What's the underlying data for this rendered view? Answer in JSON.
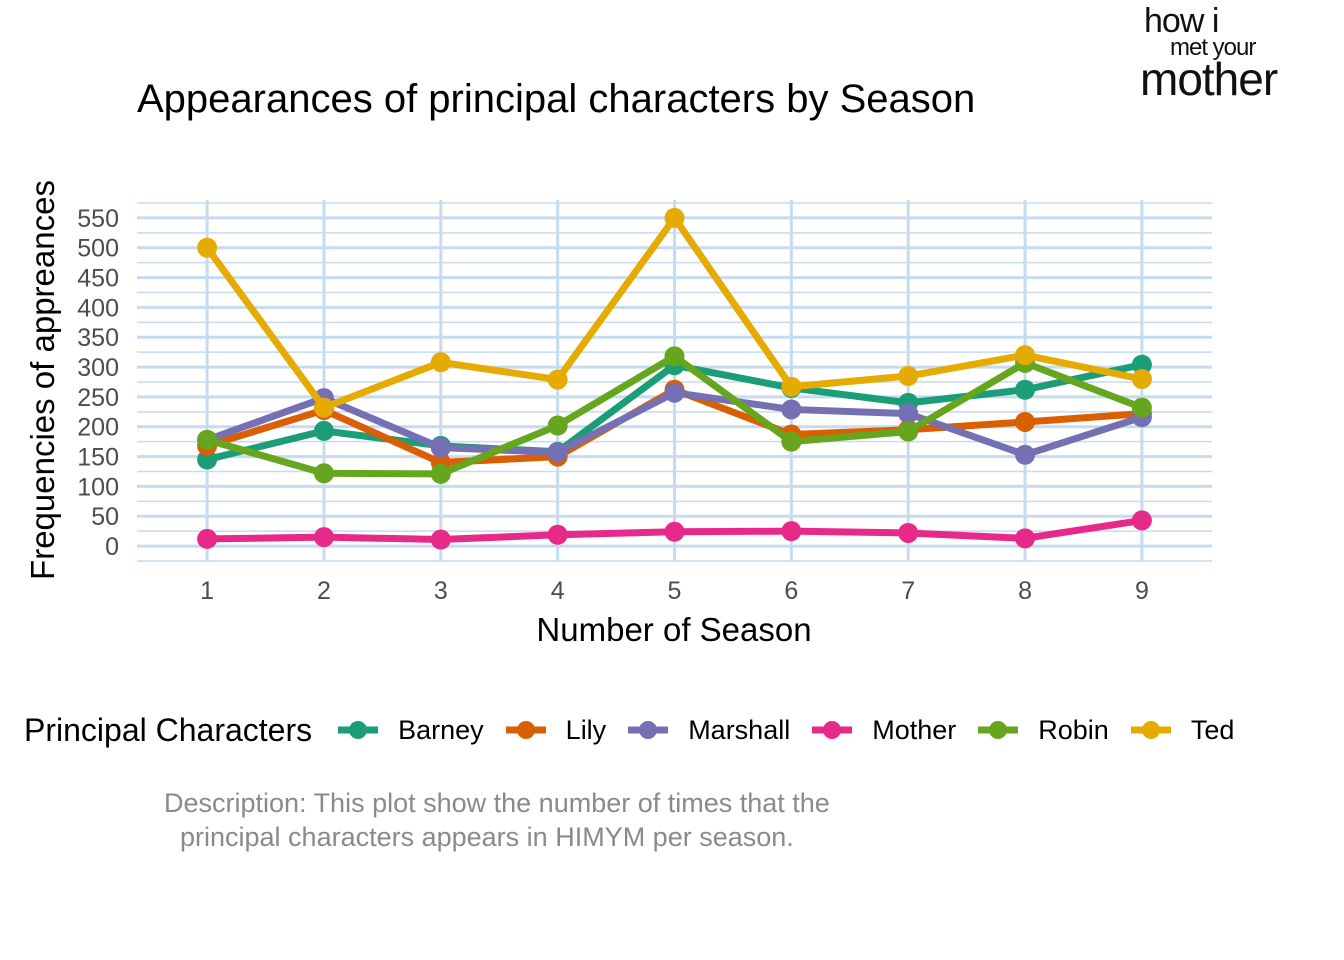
{
  "logo": {
    "line1": "how i",
    "line2": "met your",
    "line3": "mother"
  },
  "chart_data": {
    "type": "line",
    "title": "Appearances of principal characters by Season",
    "xlabel": "Number of Season",
    "ylabel": "Frequencies of appreances",
    "x": [
      1,
      2,
      3,
      4,
      5,
      6,
      7,
      8,
      9
    ],
    "x_ticks": [
      "1",
      "2",
      "3",
      "4",
      "5",
      "6",
      "7",
      "8",
      "9"
    ],
    "y_ticks": [
      0,
      50,
      100,
      150,
      200,
      250,
      300,
      350,
      400,
      450,
      500,
      550
    ],
    "ylim": [
      -25,
      580
    ],
    "grid": true,
    "legend_title": "Principal Characters",
    "legend_position": "bottom",
    "series": [
      {
        "name": "Barney",
        "color": "#1b9e77",
        "values": [
          145,
          193,
          168,
          158,
          303,
          265,
          240,
          262,
          304
        ]
      },
      {
        "name": "Lily",
        "color": "#d95f02",
        "values": [
          168,
          228,
          140,
          150,
          262,
          187,
          195,
          208,
          222
        ]
      },
      {
        "name": "Marshall",
        "color": "#7570b3",
        "values": [
          178,
          248,
          165,
          157,
          257,
          229,
          222,
          153,
          216
        ]
      },
      {
        "name": "Mother",
        "color": "#e7298a",
        "values": [
          12,
          15,
          11,
          19,
          24,
          25,
          22,
          13,
          43
        ]
      },
      {
        "name": "Robin",
        "color": "#66a61e",
        "values": [
          178,
          122,
          121,
          202,
          318,
          175,
          192,
          307,
          232
        ]
      },
      {
        "name": "Ted",
        "color": "#e6ab02",
        "values": [
          500,
          232,
          308,
          279,
          550,
          267,
          285,
          320,
          280
        ]
      }
    ]
  },
  "description": {
    "line1": "Description: This plot show the number of times that the",
    "line2": "principal characters appears in HIMYM per season."
  }
}
